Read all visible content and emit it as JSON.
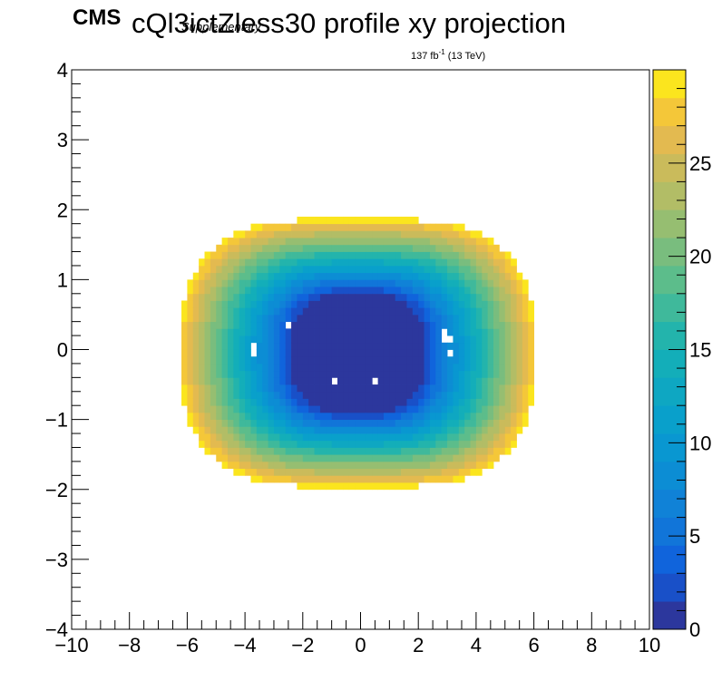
{
  "header": {
    "experiment": "CMS",
    "title": "cQl3ictZless30 profile xy projection",
    "status": "Supplementary",
    "lumi_main": "137 fb",
    "lumi_sup": "-1",
    "lumi_energy": " (13 TeV)"
  },
  "chart_data": {
    "type": "heatmap",
    "title": "cQl3ictZless30 profile xy projection",
    "xlabel": "",
    "ylabel": "",
    "xlim": [
      -10,
      10
    ],
    "ylim": [
      -4,
      4
    ],
    "zlim": [
      0,
      30
    ],
    "palette": "kBird",
    "grid": false,
    "x_tick_labels": [
      "−10",
      "−8",
      "−6",
      "−4",
      "−2",
      "0",
      "2",
      "4",
      "6",
      "8",
      "10"
    ],
    "y_tick_labels": [
      "−4",
      "−3",
      "−2",
      "−1",
      "0",
      "1",
      "2",
      "3",
      "4"
    ],
    "z_tick_labels": [
      "0",
      "5",
      "10",
      "15",
      "20",
      "25"
    ],
    "description_of_values": "Approximately elliptical bowl: z near 0 inside the central region x in [-2.4, 2.2], y in [-0.85, 0.85]; z rises outward to about 29 at the edge of the filled region (x in [-6.2, 6.0], y in [-1.95, 1.9]); empty outside.",
    "center": [
      -0.1,
      -0.05
    ],
    "inner_half_widths": [
      2.3,
      0.85
    ],
    "outer_half_widths": [
      6.15,
      1.92
    ],
    "z_max_filled": 29.3,
    "empty_bins": [
      [
        -2.55,
        0.37
      ],
      [
        -3.65,
        0.05
      ],
      [
        -3.65,
        -0.05
      ],
      [
        -0.95,
        -0.43
      ],
      [
        0.45,
        -0.43
      ],
      [
        2.85,
        0.2
      ],
      [
        3.05,
        0.12
      ],
      [
        3.05,
        -0.02
      ]
    ],
    "colorbar_levels": 20
  }
}
